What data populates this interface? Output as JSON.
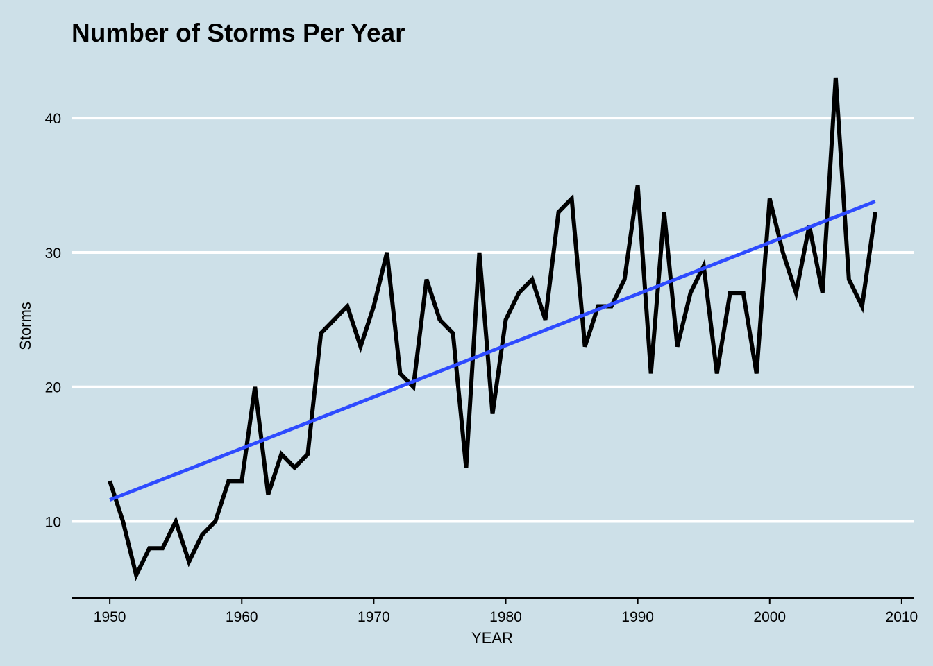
{
  "chart_data": {
    "type": "line",
    "title": "Number of Storms Per Year",
    "xlabel": "YEAR",
    "ylabel": "Storms",
    "xlim": [
      1947.1,
      2010.9
    ],
    "ylim": [
      4.3,
      43.0
    ],
    "x_ticks": [
      1950,
      1960,
      1970,
      1980,
      1990,
      2000,
      2010
    ],
    "y_ticks": [
      10,
      20,
      30,
      40
    ],
    "grid": "horizontal-major",
    "background_color": "#cde0e8",
    "gridline_color": "#ffffff",
    "series": [
      {
        "type": "line",
        "color": "#000000",
        "x": [
          1950,
          1951,
          1952,
          1953,
          1954,
          1955,
          1956,
          1957,
          1958,
          1959,
          1960,
          1961,
          1962,
          1963,
          1964,
          1965,
          1966,
          1967,
          1968,
          1969,
          1970,
          1971,
          1972,
          1973,
          1974,
          1975,
          1976,
          1977,
          1978,
          1979,
          1980,
          1981,
          1982,
          1983,
          1984,
          1985,
          1986,
          1987,
          1988,
          1989,
          1990,
          1991,
          1992,
          1993,
          1994,
          1995,
          1996,
          1997,
          1998,
          1999,
          2000,
          2001,
          2002,
          2003,
          2004,
          2005,
          2006,
          2007,
          2008
        ],
        "y": [
          13,
          10,
          6,
          8,
          8,
          10,
          7,
          9,
          10,
          13,
          13,
          20,
          12,
          15,
          14,
          15,
          24,
          25,
          26,
          23,
          26,
          30,
          21,
          20,
          28,
          25,
          24,
          14,
          30,
          18,
          25,
          27,
          28,
          25,
          33,
          34,
          23,
          26,
          26,
          28,
          35,
          21,
          33,
          23,
          27,
          29,
          21,
          27,
          27,
          21,
          34,
          30,
          27,
          32,
          27,
          43,
          28,
          26,
          33
        ]
      },
      {
        "type": "trend",
        "color": "#2e4bff",
        "x": [
          1950,
          2008
        ],
        "y": [
          11.6,
          33.8
        ]
      }
    ]
  }
}
